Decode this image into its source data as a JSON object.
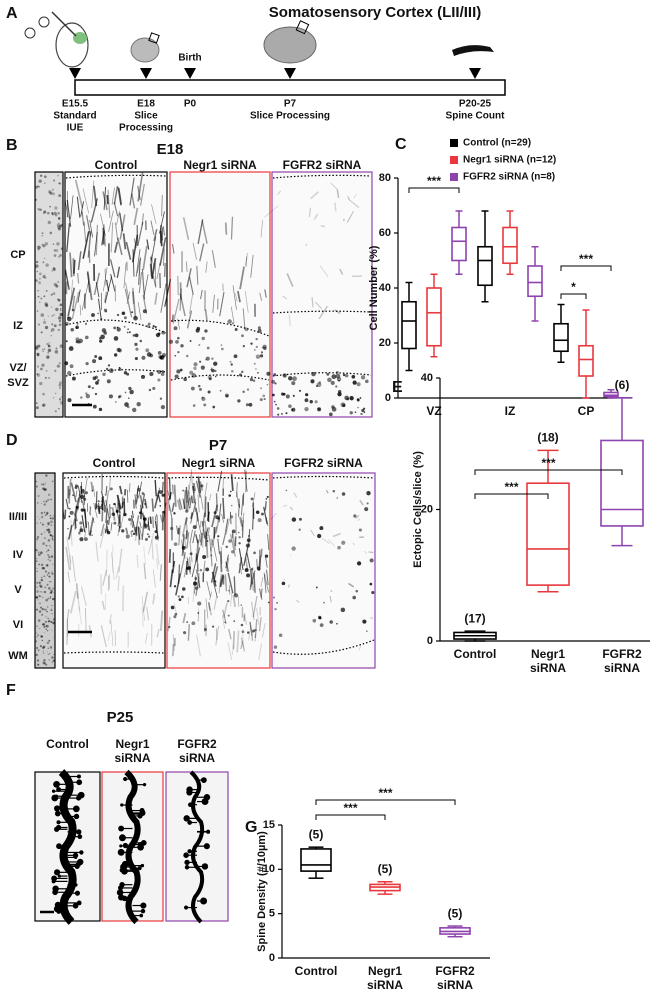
{
  "timeline": {
    "label": "A",
    "title": "Somatosensory Cortex (LII/III)",
    "events": [
      {
        "lines": [
          "E15.5",
          "Standard",
          "IUE"
        ]
      },
      {
        "lines": [
          "E18",
          "Slice",
          "Processing"
        ]
      },
      {
        "lines": [
          "P0"
        ],
        "above": "Birth"
      },
      {
        "lines": [
          "P7",
          "Slice Processing"
        ]
      },
      {
        "lines": [
          "P20-25",
          "Spine Count"
        ]
      }
    ]
  },
  "panel_B": {
    "label": "B",
    "title": "E18",
    "columns": [
      "Control",
      "Negr1 siRNA",
      "FGFR2 siRNA"
    ],
    "layers": [
      [
        "CP"
      ],
      [
        "IZ"
      ],
      [
        "VZ/",
        "SVZ"
      ]
    ]
  },
  "panel_D": {
    "label": "D",
    "title": "P7",
    "columns": [
      "Control",
      "Negr1 siRNA",
      "FGFR2 siRNA"
    ],
    "layers": [
      [
        "II/III"
      ],
      [
        "IV"
      ],
      [
        "V"
      ],
      [
        "VI"
      ],
      [
        "WM"
      ]
    ]
  },
  "panel_F": {
    "label": "F",
    "title": "P25",
    "columns": [
      [
        "Control"
      ],
      [
        "Negr1",
        "siRNA"
      ],
      [
        "FGFR2",
        "siRNA"
      ]
    ]
  },
  "chart_data": [
    {
      "type": "box",
      "panel_label": "C",
      "y_label": "Cell Number (%)",
      "categories": [
        "VZ",
        "IZ",
        "CP"
      ],
      "series": [
        {
          "name": "Control (n=29)",
          "color": "#000000",
          "values": [
            {
              "min": 10,
              "q1": 18,
              "median": 28,
              "q3": 35,
              "max": 42
            },
            {
              "min": 35,
              "q1": 41,
              "median": 50,
              "q3": 55,
              "max": 68
            },
            {
              "min": 13,
              "q1": 17,
              "median": 21,
              "q3": 27,
              "max": 34
            }
          ]
        },
        {
          "name": "Negr1 siRNA (n=12)",
          "color": "#e8383d",
          "values": [
            {
              "min": 15,
              "q1": 19,
              "median": 31,
              "q3": 40,
              "max": 45
            },
            {
              "min": 45,
              "q1": 49,
              "median": 55,
              "q3": 62,
              "max": 68
            },
            {
              "min": 0,
              "q1": 8,
              "median": 14,
              "q3": 19,
              "max": 32
            }
          ]
        },
        {
          "name": "FGFR2 siRNA (n=8)",
          "color": "#8e44ad",
          "values": [
            {
              "min": 45,
              "q1": 50,
              "median": 57,
              "q3": 62,
              "max": 68
            },
            {
              "min": 28,
              "q1": 37,
              "median": 42,
              "q3": 48,
              "max": 55
            },
            {
              "min": 0,
              "q1": 0.5,
              "median": 1,
              "q3": 2,
              "max": 3
            }
          ]
        }
      ],
      "ylim": [
        0,
        80
      ],
      "yticks": [
        0,
        20,
        40,
        60,
        80
      ],
      "significance": [
        "***",
        "***",
        "*"
      ]
    },
    {
      "type": "box",
      "panel_label": "E",
      "y_label": "Ectopic Cells/slice (%)",
      "categories": [
        [
          "Control"
        ],
        [
          "Negr1",
          "siRNA"
        ],
        [
          "FGFR2",
          "siRNA"
        ]
      ],
      "colors": [
        "#000000",
        "#e8383d",
        "#8e44ad"
      ],
      "values": [
        {
          "min": 0,
          "q1": 0.3,
          "median": 0.8,
          "q3": 1.3,
          "max": 1.5
        },
        {
          "min": 7.5,
          "q1": 8.5,
          "median": 14,
          "q3": 24,
          "max": 29
        },
        {
          "min": 14.5,
          "q1": 17.5,
          "median": 20,
          "q3": 30.5,
          "max": 37
        }
      ],
      "n_labels": [
        "(17)",
        "(18)",
        "(6)"
      ],
      "ylim": [
        0,
        40
      ],
      "yticks": [
        0,
        20,
        40
      ],
      "significance": [
        "***",
        "***"
      ]
    },
    {
      "type": "box",
      "panel_label": "G",
      "y_label": "Spine Density (#/10µm)",
      "categories": [
        [
          "Control"
        ],
        [
          "Negr1",
          "siRNA"
        ],
        [
          "FGFR2",
          "siRNA"
        ]
      ],
      "colors": [
        "#000000",
        "#e8383d",
        "#8e44ad"
      ],
      "values": [
        {
          "min": 9,
          "q1": 9.8,
          "median": 10.5,
          "q3": 12.3,
          "max": 12.5
        },
        {
          "min": 7.2,
          "q1": 7.6,
          "median": 8,
          "q3": 8.3,
          "max": 8.6
        },
        {
          "min": 2.4,
          "q1": 2.7,
          "median": 3,
          "q3": 3.4,
          "max": 3.6
        }
      ],
      "n_labels": [
        "(5)",
        "(5)",
        "(5)"
      ],
      "ylim": [
        0,
        15
      ],
      "yticks": [
        0,
        5,
        10,
        15
      ],
      "significance": [
        "***",
        "***"
      ]
    }
  ]
}
